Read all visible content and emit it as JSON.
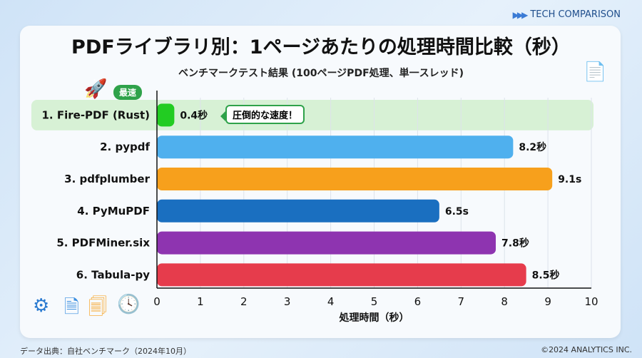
{
  "header": {
    "tag": "TECH COMPARISON"
  },
  "badge": "最速",
  "callout": "圧倒的な速度！",
  "footer": {
    "source": "データ出典：自社ベンチマーク（2024年10月）",
    "copyright": "©2024 ANALYTICS INC."
  },
  "chart_data": {
    "type": "bar",
    "orientation": "horizontal",
    "title": "PDFライブラリ別：1ページあたりの処理時間比較（秒）",
    "subtitle": "ベンチマークテスト結果 (100ページPDF処理、単一スレッド)",
    "xlabel": "処理時間（秒）",
    "xlim": [
      0,
      10
    ],
    "ticks": [
      "0",
      "1",
      "2",
      "3",
      "4",
      "5",
      "6",
      "7",
      "8",
      "9",
      "10"
    ],
    "grid": true,
    "categories": [
      "1. Fire-PDF (Rust)",
      "2. pypdf",
      "3. pdfplumber",
      "4. PyMuPDF",
      "5. PDFMiner.six",
      "6. Tabula-py"
    ],
    "values": [
      0.4,
      8.2,
      9.1,
      6.5,
      7.8,
      8.5
    ],
    "data_labels": [
      "0.4秒",
      "8.2秒",
      "9.1s",
      "6.5s",
      "7.8秒",
      "8.5秒"
    ],
    "colors": [
      "#22cc22",
      "#4fb0ee",
      "#f7a01c",
      "#1a6fc0",
      "#8e34b0",
      "#e63c4c"
    ],
    "highlight_color": "#d7f1d5"
  }
}
